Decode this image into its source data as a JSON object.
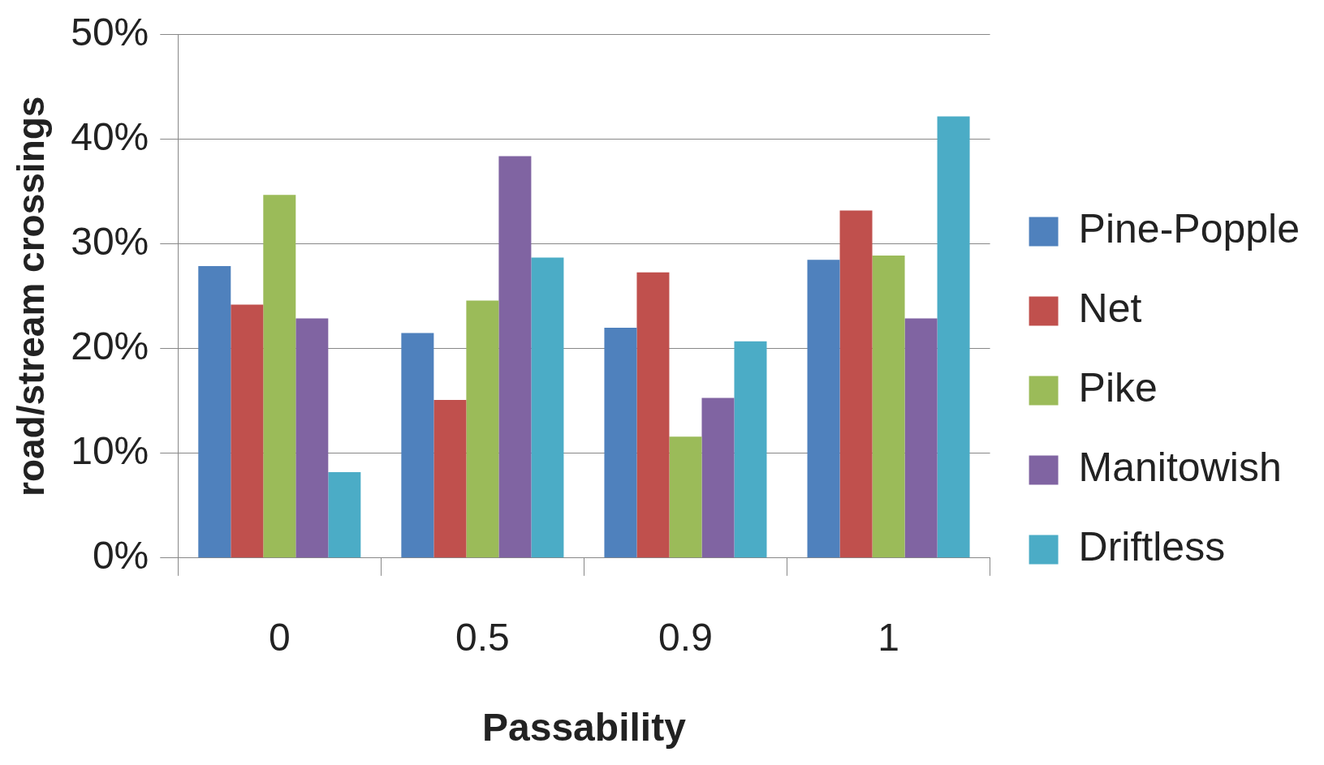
{
  "chart_data": {
    "type": "bar",
    "xlabel": "Passability",
    "ylabel": "road/stream crossings",
    "categories": [
      "0",
      "0.5",
      "0.9",
      "1"
    ],
    "series": [
      {
        "name": "Pine-Popple",
        "color": "#4f81bd",
        "values": [
          27.9,
          21.5,
          22.0,
          28.5
        ]
      },
      {
        "name": "Net",
        "color": "#c0504d",
        "values": [
          24.2,
          15.1,
          27.3,
          33.2
        ]
      },
      {
        "name": "Pike",
        "color": "#9bbb59",
        "values": [
          34.7,
          24.6,
          11.6,
          28.9
        ]
      },
      {
        "name": "Manitowish",
        "color": "#8064a2",
        "values": [
          22.9,
          38.4,
          15.3,
          22.9
        ]
      },
      {
        "name": "Driftless",
        "color": "#4bacc6",
        "values": [
          8.2,
          28.7,
          20.7,
          42.2
        ]
      }
    ],
    "ylim": [
      0,
      50
    ],
    "yticks": [
      {
        "value": 0,
        "label": "0%"
      },
      {
        "value": 10,
        "label": "10%"
      },
      {
        "value": 20,
        "label": "20%"
      },
      {
        "value": 30,
        "label": "30%"
      },
      {
        "value": 40,
        "label": "40%"
      },
      {
        "value": 50,
        "label": "50%"
      }
    ],
    "grid": "y",
    "legend": "right"
  }
}
